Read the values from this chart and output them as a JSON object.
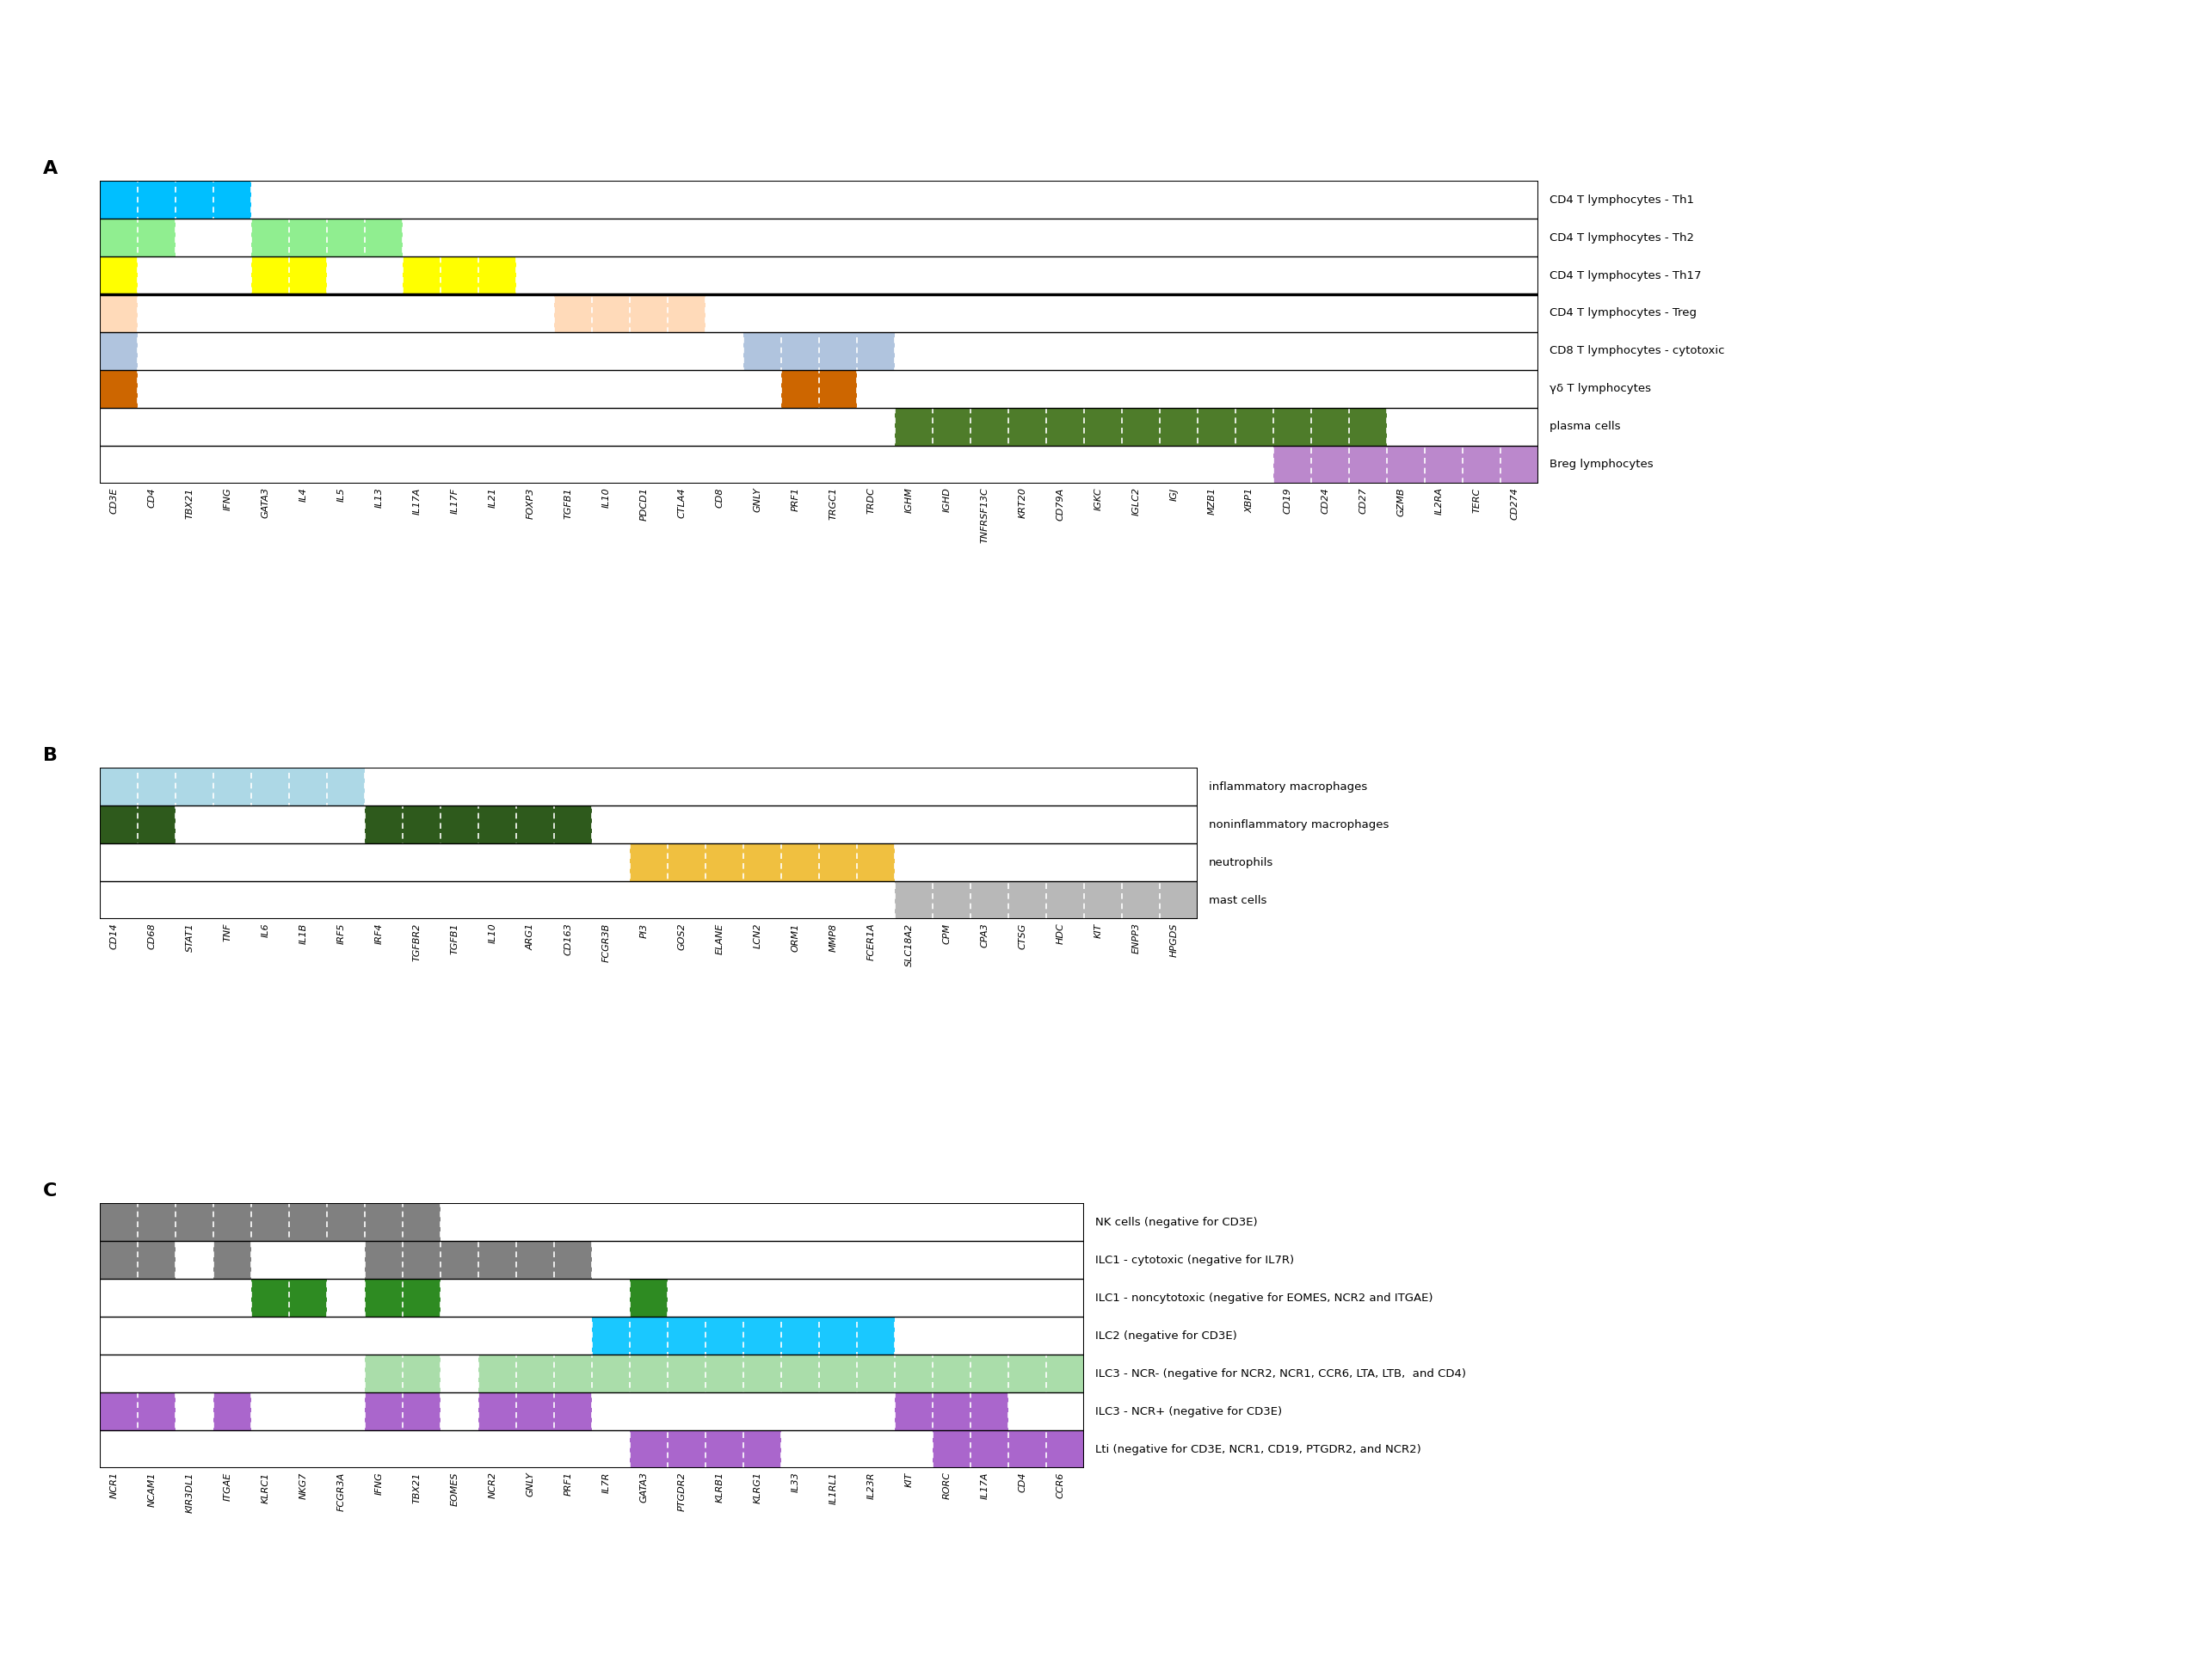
{
  "panel_A": {
    "rows": [
      "CD4 T lymphocytes - Th1",
      "CD4 T lymphocytes - Th2",
      "CD4 T lymphocytes - Th17",
      "CD4 T lymphocytes - Treg",
      "CD8 T lymphocytes - cytotoxic",
      "γδ T lymphocytes",
      "plasma cells",
      "Breg lymphocytes"
    ],
    "cols": [
      "CD3E",
      "CD4",
      "TBX21",
      "IFNG",
      "GATA3",
      "IL4",
      "IL5",
      "IL13",
      "IL17A",
      "IL17F",
      "IL21",
      "FOXP3",
      "TGFB1",
      "IL10",
      "PDCD1",
      "CTLA4",
      "CD8",
      "GNLY",
      "PRF1",
      "TRGC1",
      "TRDC",
      "IGHM",
      "IGHD",
      "TNFRSF13C",
      "KRT20",
      "CD79A",
      "IGKC",
      "IGLC2",
      "IGJ",
      "MZB1",
      "XBP1",
      "CD19",
      "CD24",
      "CD27",
      "GZMB",
      "IL2RA",
      "TERC",
      "CD274"
    ],
    "colored_cells": [
      {
        "row": 0,
        "cols": [
          0,
          1,
          2,
          3
        ],
        "color": "#00BFFF"
      },
      {
        "row": 1,
        "cols": [
          0,
          1,
          4,
          5,
          6,
          7
        ],
        "color": "#90EE90"
      },
      {
        "row": 2,
        "cols": [
          0,
          4,
          5
        ],
        "color": "#FFFF00"
      },
      {
        "row": 2,
        "cols": [
          8,
          9,
          10
        ],
        "color": "#FFFF00"
      },
      {
        "row": 3,
        "cols": [
          0,
          12,
          13,
          14,
          15
        ],
        "color": "#FFDAB9"
      },
      {
        "row": 4,
        "cols": [
          0,
          17,
          18
        ],
        "color": "#B0C4DE"
      },
      {
        "row": 4,
        "cols": [
          19,
          20
        ],
        "color": "#B0C4DE"
      },
      {
        "row": 5,
        "cols": [
          0,
          18,
          19
        ],
        "color": "#CD6600"
      },
      {
        "row": 6,
        "cols": [
          21,
          22,
          23,
          24,
          25,
          26,
          27,
          28,
          29,
          30,
          31,
          32,
          33
        ],
        "color": "#4E7C2A"
      },
      {
        "row": 7,
        "cols": [
          31,
          32,
          33,
          34,
          35,
          36,
          37
        ],
        "color": "#BB88CC"
      }
    ],
    "thick_border_after_row": 3,
    "n_rows": 8,
    "n_cols": 38
  },
  "panel_B": {
    "rows": [
      "inflammatory macrophages",
      "noninflammatory macrophages",
      "neutrophils",
      "mast cells"
    ],
    "cols": [
      "CD14",
      "CD68",
      "STAT1",
      "TNF",
      "IL6",
      "IL1B",
      "IRF5",
      "IRF4",
      "TGFBR2",
      "TGFB1",
      "IL10",
      "ARG1",
      "CD163",
      "FCGR3B",
      "PI3",
      "GOS2",
      "ELANE",
      "LCN2",
      "ORM1",
      "MMP8",
      "FCER1A",
      "SLC18A2",
      "CPM",
      "CPA3",
      "CTSG",
      "HDC",
      "KIT",
      "ENPP3",
      "HPGDS"
    ],
    "colored_cells": [
      {
        "row": 0,
        "cols": [
          0,
          1,
          2,
          3,
          4,
          5,
          6
        ],
        "color": "#ADD8E6"
      },
      {
        "row": 1,
        "cols": [
          0,
          1,
          7,
          8,
          9,
          10,
          11,
          12
        ],
        "color": "#2E5A1C"
      },
      {
        "row": 2,
        "cols": [
          14,
          15,
          16,
          17,
          18,
          19,
          20
        ],
        "color": "#F0C040"
      },
      {
        "row": 3,
        "cols": [
          21,
          22,
          23,
          24,
          25,
          26,
          27,
          28
        ],
        "color": "#B8B8B8"
      }
    ],
    "n_rows": 4,
    "n_cols": 29
  },
  "panel_C": {
    "rows": [
      "NK cells (negative for CD3E)",
      "ILC1 - cytotoxic (negative for IL7R)",
      "ILC1 - noncytotoxic (negative for EOMES, NCR2 and ITGAE)",
      "ILC2 (negative for CD3E)",
      "ILC3 - NCR- (negative for NCR2, NCR1, CCR6, LTA, LTB,  and CD4)",
      "ILC3 - NCR+ (negative for CD3E)",
      "Lti (negative for CD3E, NCR1, CD19, PTGDR2, and NCR2)"
    ],
    "cols": [
      "NCR1",
      "NCAM1",
      "KIR3DL1",
      "ITGAE",
      "KLRC1",
      "NKG7",
      "FCGR3A",
      "IFNG",
      "TBX21",
      "EOMES",
      "NCR2",
      "GNLY",
      "PRF1",
      "IL7R",
      "GATA3",
      "PTGDR2",
      "KLRB1",
      "KLRG1",
      "IL33",
      "IL1RL1",
      "IL23R",
      "KIT",
      "RORC",
      "IL17A",
      "CD4",
      "CCR6"
    ],
    "colored_cells": [
      {
        "row": 0,
        "cols": [
          0,
          1,
          2,
          3,
          4,
          5,
          6,
          7,
          8
        ],
        "color": "#808080"
      },
      {
        "row": 1,
        "cols": [
          0,
          1,
          3,
          7,
          8,
          9,
          10,
          11,
          12
        ],
        "color": "#808080"
      },
      {
        "row": 2,
        "cols": [
          4,
          5,
          7,
          8,
          14
        ],
        "color": "#2E8B22"
      },
      {
        "row": 3,
        "cols": [
          13,
          14,
          15,
          16,
          17,
          18,
          19,
          20
        ],
        "color": "#1AC8FF"
      },
      {
        "row": 4,
        "cols": [
          7,
          8,
          10,
          11,
          12,
          13,
          14,
          15,
          16,
          17,
          18,
          19,
          20,
          21,
          22,
          23,
          24,
          25
        ],
        "color": "#AADDAA"
      },
      {
        "row": 5,
        "cols": [
          0,
          1,
          3,
          7,
          8,
          10,
          11,
          12,
          21,
          22,
          23
        ],
        "color": "#AA66CC"
      },
      {
        "row": 6,
        "cols": [
          14,
          15,
          16,
          17,
          22,
          23,
          24,
          25
        ],
        "color": "#AA66CC"
      }
    ],
    "n_rows": 7,
    "n_cols": 26
  }
}
